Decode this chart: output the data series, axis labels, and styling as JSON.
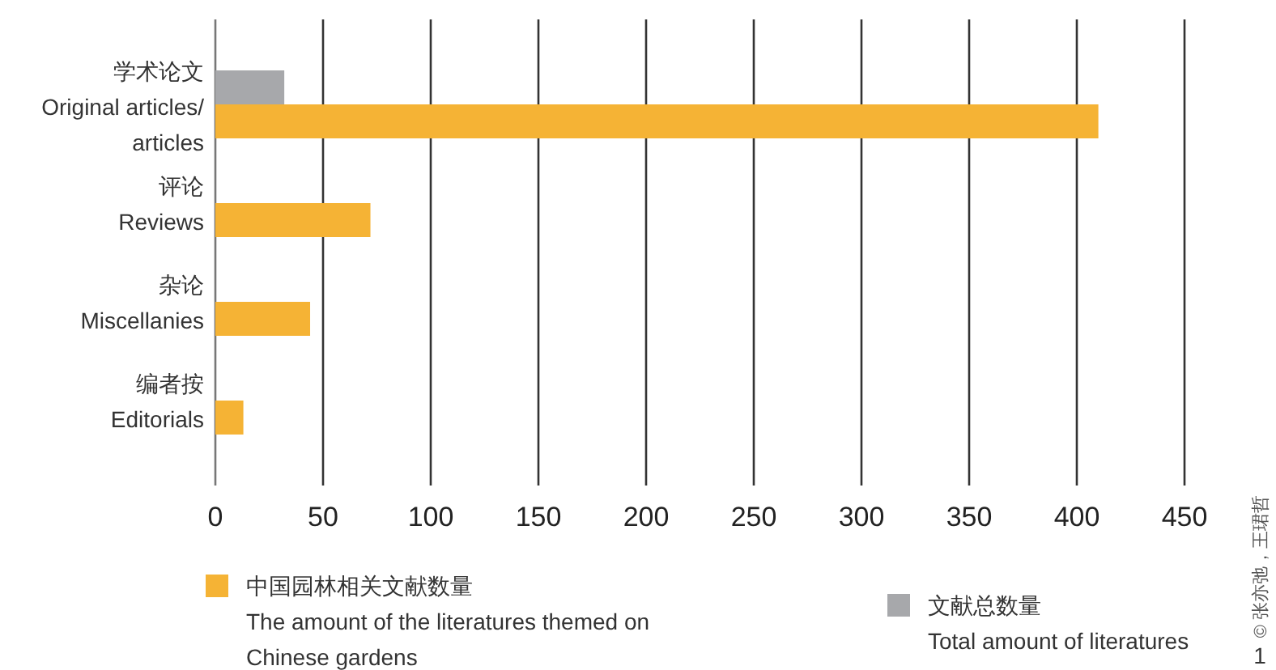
{
  "chart_data": {
    "type": "bar",
    "orientation": "horizontal",
    "categories": [
      "学术论文\nOriginal articles/\narticles",
      "评论\nReviews",
      "杂论\nMiscellanies",
      "编者按\nEditorials"
    ],
    "series": [
      {
        "name": "中国园林相关文献数量\nThe amount of the literatures themed on\nChinese gardens",
        "color": "#f5b335",
        "values": [
          410,
          72,
          44,
          13
        ]
      },
      {
        "name": "文献总数量\nTotal amount of literatures",
        "color": "#a7a8ab",
        "values": [
          32,
          null,
          null,
          null
        ]
      }
    ],
    "xlim": [
      0,
      450
    ],
    "xticks": [
      0,
      50,
      100,
      150,
      200,
      250,
      300,
      350,
      400,
      450
    ],
    "grid": "x",
    "legend": "bottom",
    "annotations": [
      "© 张亦弛，王珺哲",
      "1"
    ]
  }
}
